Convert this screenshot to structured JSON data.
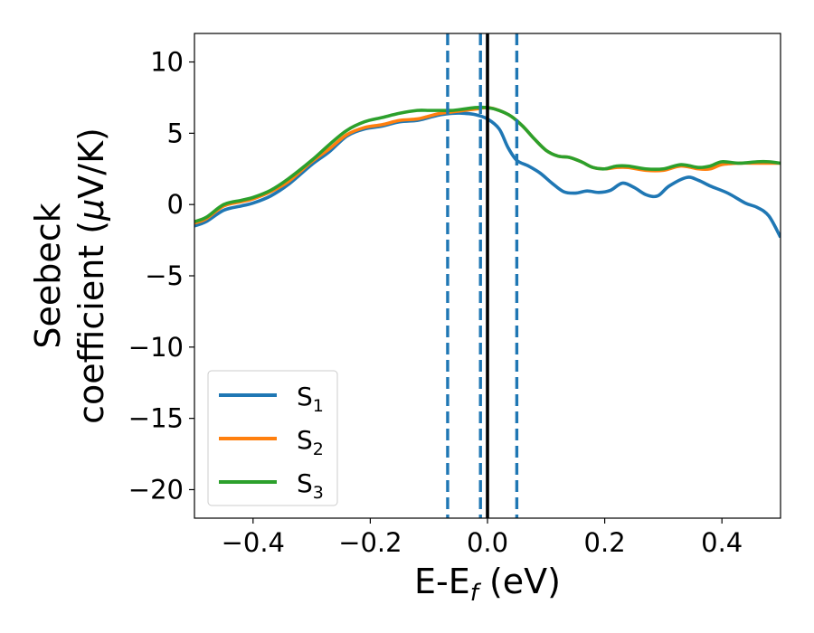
{
  "chart_data": {
    "type": "line",
    "xlabel": "E-E",
    "xlabel_sub": "f",
    "xlabel_unit": " (eV)",
    "ylabel_line1": "Seebeck",
    "ylabel_line2_prefix": "coefficient  (",
    "ylabel_mu": "μ",
    "ylabel_line2_suffix": "V/K)",
    "xlim": [
      -0.5,
      0.5
    ],
    "ylim": [
      -22,
      12
    ],
    "x_ticks": [
      -0.4,
      -0.2,
      0.0,
      0.2,
      0.4
    ],
    "x_tick_labels": [
      "−0.4",
      "−0.2",
      "0.0",
      "0.2",
      "0.4"
    ],
    "y_ticks": [
      10,
      5,
      0,
      -5,
      -10,
      -15,
      -20
    ],
    "y_tick_labels": [
      "10",
      "5",
      "0",
      "−5",
      "−10",
      "−15",
      "−20"
    ],
    "grid": false,
    "legend_position": "lower-left",
    "series": [
      {
        "name": "S",
        "name_sub": "1",
        "color": "#1f77b4",
        "points": [
          [
            -0.5,
            -1.5
          ],
          [
            -0.48,
            -1.2
          ],
          [
            -0.45,
            -0.4
          ],
          [
            -0.42,
            -0.1
          ],
          [
            -0.4,
            0.1
          ],
          [
            -0.37,
            0.6
          ],
          [
            -0.34,
            1.4
          ],
          [
            -0.3,
            2.8
          ],
          [
            -0.27,
            3.7
          ],
          [
            -0.24,
            4.8
          ],
          [
            -0.21,
            5.3
          ],
          [
            -0.18,
            5.5
          ],
          [
            -0.15,
            5.8
          ],
          [
            -0.12,
            5.9
          ],
          [
            -0.1,
            6.1
          ],
          [
            -0.08,
            6.3
          ],
          [
            -0.06,
            6.4
          ],
          [
            -0.04,
            6.4
          ],
          [
            -0.02,
            6.3
          ],
          [
            0.0,
            6.0
          ],
          [
            0.02,
            5.3
          ],
          [
            0.035,
            4.0
          ],
          [
            0.05,
            3.1
          ],
          [
            0.07,
            2.7
          ],
          [
            0.09,
            2.2
          ],
          [
            0.11,
            1.5
          ],
          [
            0.13,
            0.9
          ],
          [
            0.15,
            0.8
          ],
          [
            0.17,
            0.95
          ],
          [
            0.19,
            0.85
          ],
          [
            0.21,
            1.0
          ],
          [
            0.23,
            1.5
          ],
          [
            0.25,
            1.2
          ],
          [
            0.27,
            0.7
          ],
          [
            0.29,
            0.6
          ],
          [
            0.31,
            1.3
          ],
          [
            0.34,
            1.9
          ],
          [
            0.36,
            1.7
          ],
          [
            0.38,
            1.3
          ],
          [
            0.41,
            0.8
          ],
          [
            0.44,
            0.1
          ],
          [
            0.46,
            -0.2
          ],
          [
            0.48,
            -0.8
          ],
          [
            0.5,
            -2.3
          ]
        ]
      },
      {
        "name": "S",
        "name_sub": "2",
        "color": "#ff7f0e",
        "points": [
          [
            -0.5,
            -1.3
          ],
          [
            -0.48,
            -1.0
          ],
          [
            -0.45,
            -0.1
          ],
          [
            -0.42,
            0.2
          ],
          [
            -0.4,
            0.4
          ],
          [
            -0.37,
            0.9
          ],
          [
            -0.34,
            1.6
          ],
          [
            -0.3,
            3.0
          ],
          [
            -0.27,
            3.9
          ],
          [
            -0.24,
            4.9
          ],
          [
            -0.21,
            5.4
          ],
          [
            -0.18,
            5.6
          ],
          [
            -0.15,
            5.9
          ],
          [
            -0.12,
            6.0
          ],
          [
            -0.1,
            6.2
          ],
          [
            -0.08,
            6.4
          ],
          [
            -0.06,
            6.5
          ],
          [
            -0.04,
            6.6
          ],
          [
            -0.02,
            6.7
          ],
          [
            0.0,
            6.8
          ],
          [
            0.02,
            6.6
          ],
          [
            0.04,
            6.2
          ],
          [
            0.06,
            5.5
          ],
          [
            0.08,
            4.6
          ],
          [
            0.1,
            3.8
          ],
          [
            0.12,
            3.4
          ],
          [
            0.14,
            3.3
          ],
          [
            0.16,
            3.0
          ],
          [
            0.18,
            2.6
          ],
          [
            0.2,
            2.5
          ],
          [
            0.22,
            2.6
          ],
          [
            0.24,
            2.6
          ],
          [
            0.27,
            2.4
          ],
          [
            0.3,
            2.4
          ],
          [
            0.33,
            2.7
          ],
          [
            0.36,
            2.5
          ],
          [
            0.38,
            2.5
          ],
          [
            0.4,
            2.8
          ],
          [
            0.43,
            2.9
          ],
          [
            0.46,
            2.9
          ],
          [
            0.48,
            2.9
          ],
          [
            0.5,
            2.9
          ]
        ]
      },
      {
        "name": "S",
        "name_sub": "3",
        "color": "#2ca02c",
        "points": [
          [
            -0.5,
            -1.2
          ],
          [
            -0.48,
            -0.9
          ],
          [
            -0.45,
            0.0
          ],
          [
            -0.42,
            0.3
          ],
          [
            -0.4,
            0.5
          ],
          [
            -0.37,
            1.0
          ],
          [
            -0.34,
            1.8
          ],
          [
            -0.3,
            3.1
          ],
          [
            -0.27,
            4.2
          ],
          [
            -0.24,
            5.2
          ],
          [
            -0.21,
            5.8
          ],
          [
            -0.18,
            6.1
          ],
          [
            -0.15,
            6.4
          ],
          [
            -0.12,
            6.6
          ],
          [
            -0.1,
            6.6
          ],
          [
            -0.08,
            6.6
          ],
          [
            -0.06,
            6.6
          ],
          [
            -0.04,
            6.7
          ],
          [
            -0.02,
            6.8
          ],
          [
            0.0,
            6.8
          ],
          [
            0.02,
            6.6
          ],
          [
            0.04,
            6.2
          ],
          [
            0.06,
            5.5
          ],
          [
            0.08,
            4.6
          ],
          [
            0.1,
            3.8
          ],
          [
            0.12,
            3.4
          ],
          [
            0.14,
            3.3
          ],
          [
            0.16,
            3.0
          ],
          [
            0.18,
            2.6
          ],
          [
            0.2,
            2.5
          ],
          [
            0.22,
            2.7
          ],
          [
            0.24,
            2.7
          ],
          [
            0.27,
            2.5
          ],
          [
            0.3,
            2.5
          ],
          [
            0.33,
            2.8
          ],
          [
            0.36,
            2.6
          ],
          [
            0.38,
            2.7
          ],
          [
            0.4,
            3.0
          ],
          [
            0.43,
            2.9
          ],
          [
            0.46,
            3.0
          ],
          [
            0.48,
            3.0
          ],
          [
            0.5,
            2.9
          ]
        ]
      }
    ],
    "vlines": [
      {
        "x": -0.068,
        "style": "dashed",
        "color": "#1f77b4"
      },
      {
        "x": -0.012,
        "style": "dashed",
        "color": "#1f77b4"
      },
      {
        "x": 0.0,
        "style": "solid",
        "color": "#000000"
      },
      {
        "x": 0.05,
        "style": "dashed",
        "color": "#1f77b4"
      }
    ]
  }
}
